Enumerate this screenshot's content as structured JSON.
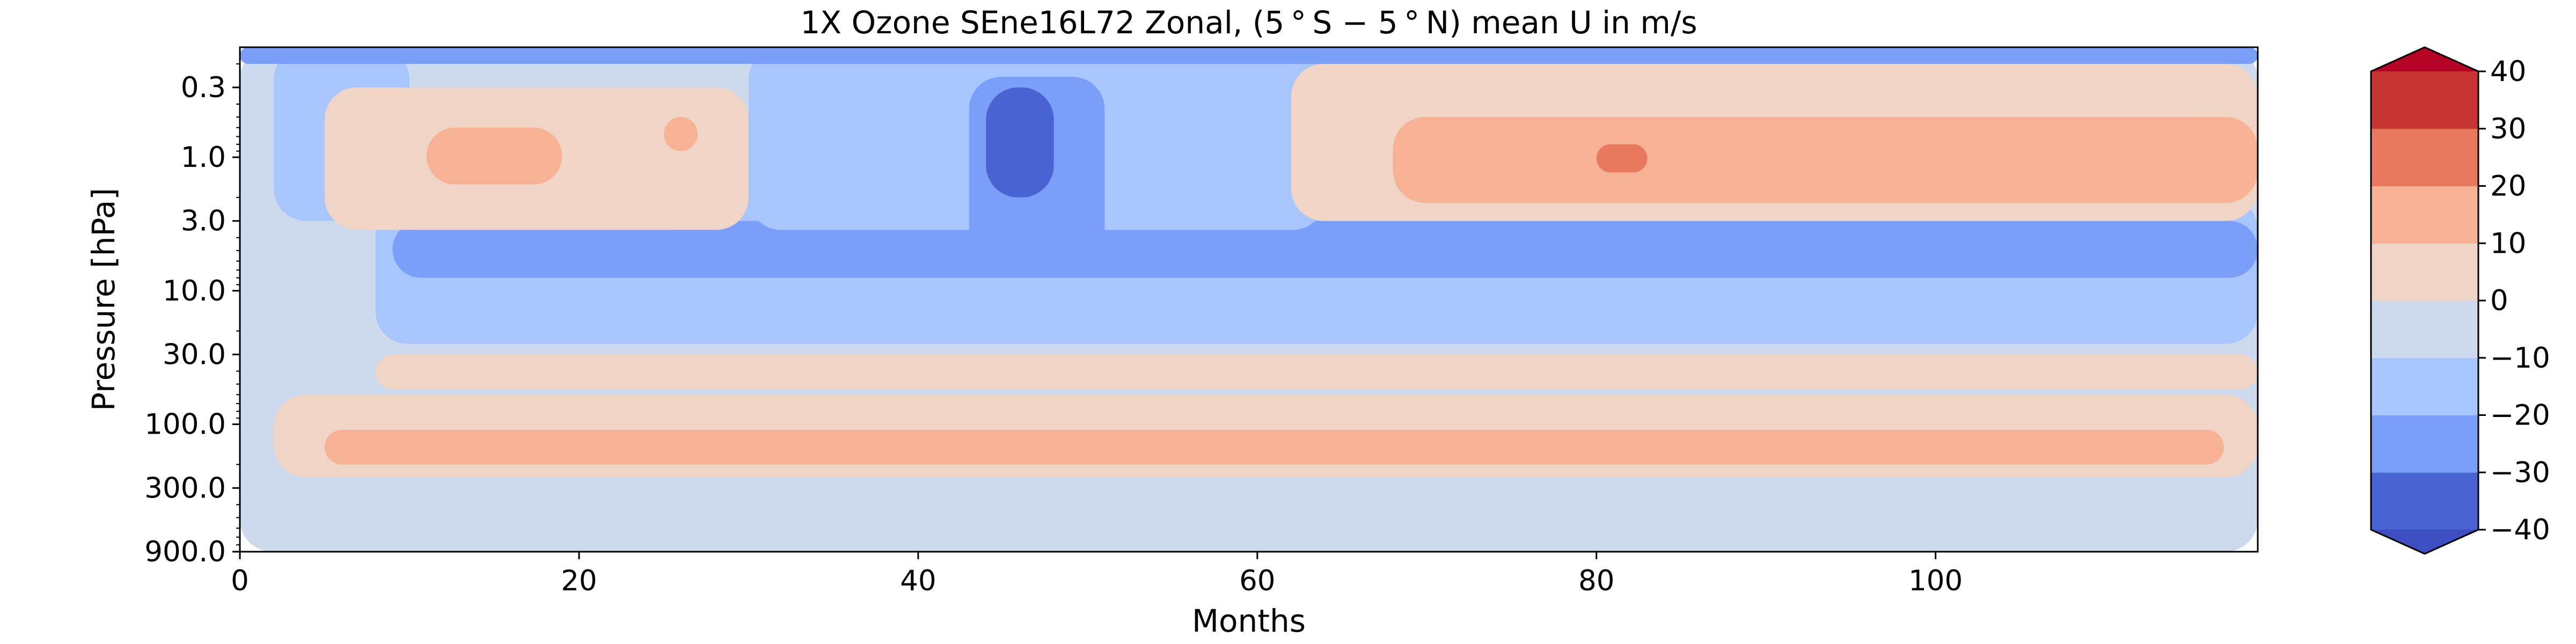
{
  "chart_data": {
    "type": "heatmap",
    "subtype": "filled-contour",
    "title": "1X Ozone SEne16L72 Zonal, (5$^\\circ$S$-$5$^\\circ$N) mean U in m/s",
    "title_display": "1X Ozone SEne16L72 Zonal, (5 ° S − 5 ° N) mean U in m/s",
    "xlabel": "Months",
    "ylabel": "Pressure [hPa]",
    "xlim": [
      0,
      119
    ],
    "ylim": [
      900.0,
      0.15
    ],
    "yscale": "log",
    "y_inverted": true,
    "x_ticks": [
      0,
      20,
      40,
      60,
      80,
      100
    ],
    "x_tick_labels": [
      "0",
      "20",
      "40",
      "60",
      "80",
      "100"
    ],
    "y_ticks": [
      0.3,
      1.0,
      3.0,
      10.0,
      30.0,
      100.0,
      300.0,
      900.0
    ],
    "y_tick_labels": [
      "0.3",
      "1.0",
      "3.0",
      "10.0",
      "30.0",
      "100.0",
      "300.0",
      "900.0"
    ],
    "colorbar": {
      "levels": [
        -40,
        -30,
        -20,
        -10,
        0,
        10,
        20,
        30,
        40
      ],
      "tick_labels": [
        "−40",
        "−30",
        "−20",
        "−10",
        "0",
        "10",
        "20",
        "30",
        "40"
      ],
      "colors": [
        "#4a63d3",
        "#7b9ff9",
        "#a9c5fe",
        "#cdd9ec",
        "#f0d4c6",
        "#f7b194",
        "#e8785e",
        "#c73635"
      ],
      "extend": "both",
      "under_color": "#3c4ec2",
      "over_color": "#b40426"
    },
    "contour_bands": [
      {
        "level": -5,
        "color": "#cdd9ec",
        "x": [
          0,
          119
        ],
        "p": [
          900.0,
          0.15
        ]
      },
      {
        "level": 5,
        "color": "#f0d4c6",
        "x": [
          2,
          119
        ],
        "p": [
          250.0,
          60.0
        ]
      },
      {
        "level": 15,
        "color": "#f7b194",
        "x": [
          5,
          117
        ],
        "p": [
          200.0,
          110.0
        ]
      },
      {
        "level": 5,
        "color": "#f0d4c6",
        "x": [
          8,
          119
        ],
        "p": [
          55.0,
          30.0
        ]
      },
      {
        "level": -15,
        "color": "#a9c5fe",
        "x": [
          8,
          119
        ],
        "p": [
          25.0,
          2.0
        ]
      },
      {
        "level": -25,
        "color": "#7b9ff9",
        "x": [
          9,
          119
        ],
        "p": [
          8.0,
          3.0
        ]
      },
      {
        "level": -15,
        "color": "#a9c5fe",
        "x": [
          2,
          10
        ],
        "p": [
          3.0,
          0.15
        ]
      },
      {
        "level": 5,
        "color": "#f0d4c6",
        "x": [
          5,
          30
        ],
        "p": [
          3.5,
          0.3
        ]
      },
      {
        "level": 15,
        "color": "#f7b194",
        "x": [
          11,
          19
        ],
        "p": [
          1.6,
          0.6
        ]
      },
      {
        "level": 15,
        "color": "#f7b194",
        "x": [
          25,
          27
        ],
        "p": [
          0.9,
          0.5
        ]
      },
      {
        "level": -15,
        "color": "#a9c5fe",
        "x": [
          30,
          64
        ],
        "p": [
          3.5,
          0.15
        ]
      },
      {
        "level": -25,
        "color": "#7b9ff9",
        "x": [
          43,
          51
        ],
        "p": [
          8.0,
          0.25
        ]
      },
      {
        "level": -35,
        "color": "#4a63d3",
        "x": [
          44,
          48
        ],
        "p": [
          2.0,
          0.3
        ]
      },
      {
        "level": 5,
        "color": "#f0d4c6",
        "x": [
          62,
          119
        ],
        "p": [
          3.0,
          0.2
        ]
      },
      {
        "level": 15,
        "color": "#f7b194",
        "x": [
          68,
          119
        ],
        "p": [
          2.2,
          0.5
        ]
      },
      {
        "level": 25,
        "color": "#e8785e",
        "x": [
          80,
          83
        ],
        "p": [
          1.3,
          0.8
        ]
      },
      {
        "level": -25,
        "color": "#7b9ff9",
        "x": [
          0,
          119
        ],
        "p": [
          0.2,
          0.15
        ]
      }
    ]
  }
}
